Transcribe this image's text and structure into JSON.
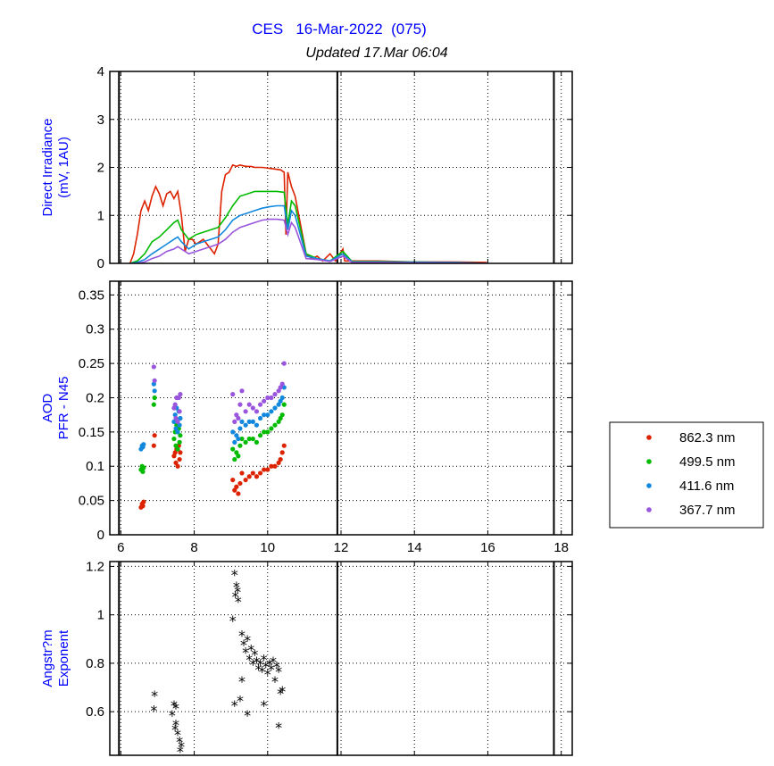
{
  "header": {
    "title": "CES   16-Mar-2022  (075)",
    "updated": "Updated 17.Mar 06:04"
  },
  "colors": {
    "862.3 nm": "#dd2200",
    "499.5 nm": "#00bb00",
    "411.6 nm": "#1188dd",
    "367.7 nm": "#9955dd",
    "angstrom": "#000000",
    "label": "#0000ff"
  },
  "chart_data": [
    {
      "type": "line",
      "ylabel": [
        "Direct Irradiance",
        "(mV, 1AU)"
      ],
      "xlim": [
        5.7,
        18.3
      ],
      "ylim": [
        0,
        4
      ],
      "yticks": [
        0,
        1,
        2,
        3,
        4
      ],
      "xticks": [
        6,
        8,
        10,
        12,
        14,
        16,
        18
      ],
      "x_tick_labels_shown": false,
      "grid": true,
      "vlines": [
        5.95,
        11.9,
        17.8
      ],
      "series": [
        {
          "name": "862.3 nm",
          "x": [
            6.25,
            6.35,
            6.45,
            6.55,
            6.65,
            6.75,
            6.85,
            6.95,
            7.05,
            7.15,
            7.25,
            7.35,
            7.45,
            7.55,
            7.65,
            7.75,
            7.85,
            7.95,
            8.05,
            8.15,
            8.25,
            8.35,
            8.45,
            8.55,
            8.65,
            8.75,
            8.85,
            8.95,
            9.05,
            9.15,
            9.25,
            9.35,
            9.45,
            9.55,
            9.65,
            9.75,
            9.85,
            9.95,
            10.05,
            10.15,
            10.25,
            10.35,
            10.45,
            10.5,
            10.55,
            10.65,
            10.75,
            11.05,
            11.2,
            11.35,
            11.5,
            11.7,
            11.85,
            12.05,
            12.1,
            12.3,
            13,
            14,
            15,
            15.95,
            16
          ],
          "y": [
            0,
            0.2,
            0.6,
            1.1,
            1.3,
            1.1,
            1.4,
            1.6,
            1.45,
            1.2,
            1.45,
            1.5,
            1.35,
            1.5,
            1.0,
            0.25,
            0.5,
            0.5,
            0.4,
            0.45,
            0.5,
            0.4,
            0.3,
            0.2,
            0.4,
            1.5,
            1.85,
            1.9,
            2.05,
            2.02,
            2.05,
            2.03,
            2.02,
            2.02,
            2.0,
            2.0,
            2.0,
            1.99,
            1.98,
            1.97,
            1.96,
            1.95,
            1.9,
            0.6,
            1.9,
            1.6,
            1.4,
            0.2,
            0.1,
            0.15,
            0.05,
            0.2,
            0.05,
            0.3,
            0.05,
            0.05,
            0.05,
            0.03,
            0.03,
            0.02,
            0
          ]
        },
        {
          "name": "499.5 nm",
          "x": [
            6.25,
            6.45,
            6.65,
            6.85,
            7.05,
            7.25,
            7.45,
            7.55,
            7.65,
            7.85,
            8.05,
            8.25,
            8.45,
            8.65,
            8.85,
            9.05,
            9.25,
            9.45,
            9.65,
            9.85,
            10.05,
            10.25,
            10.45,
            10.55,
            10.65,
            10.75,
            11.05,
            11.35,
            11.7,
            12.05,
            12.3,
            13,
            15,
            16
          ],
          "y": [
            0,
            0.05,
            0.2,
            0.45,
            0.55,
            0.7,
            0.85,
            0.9,
            0.7,
            0.5,
            0.6,
            0.65,
            0.7,
            0.75,
            0.95,
            1.2,
            1.4,
            1.45,
            1.5,
            1.5,
            1.5,
            1.5,
            1.48,
            0.8,
            1.3,
            1.2,
            0.2,
            0.1,
            0.05,
            0.25,
            0.04,
            0.04,
            0.02,
            0
          ]
        },
        {
          "name": "411.6 nm",
          "x": [
            6.25,
            6.45,
            6.65,
            6.85,
            7.05,
            7.25,
            7.45,
            7.55,
            7.65,
            7.85,
            8.05,
            8.25,
            8.45,
            8.65,
            8.85,
            9.05,
            9.25,
            9.45,
            9.65,
            9.85,
            10.05,
            10.25,
            10.45,
            10.55,
            10.65,
            10.75,
            11.05,
            11.35,
            11.7,
            12.05,
            12.3,
            13,
            15,
            16
          ],
          "y": [
            0,
            0.02,
            0.08,
            0.2,
            0.3,
            0.4,
            0.5,
            0.55,
            0.45,
            0.3,
            0.4,
            0.45,
            0.5,
            0.55,
            0.7,
            0.9,
            1.0,
            1.05,
            1.1,
            1.15,
            1.18,
            1.2,
            1.2,
            0.7,
            1.1,
            1.0,
            0.15,
            0.1,
            0.05,
            0.2,
            0.03,
            0.03,
            0.02,
            0
          ]
        },
        {
          "name": "367.7 nm",
          "x": [
            6.45,
            6.65,
            6.85,
            7.05,
            7.25,
            7.45,
            7.55,
            7.65,
            7.85,
            8.05,
            8.25,
            8.45,
            8.65,
            8.85,
            9.05,
            9.25,
            9.45,
            9.65,
            9.85,
            10.05,
            10.25,
            10.45,
            10.55,
            10.65,
            10.75,
            11.05,
            11.35,
            11.7,
            12.05,
            12.3,
            13,
            15,
            16
          ],
          "y": [
            0,
            0.03,
            0.1,
            0.15,
            0.25,
            0.3,
            0.35,
            0.3,
            0.2,
            0.25,
            0.3,
            0.35,
            0.4,
            0.5,
            0.65,
            0.75,
            0.8,
            0.85,
            0.9,
            0.92,
            0.92,
            0.9,
            0.6,
            0.85,
            0.75,
            0.1,
            0.08,
            0.04,
            0.15,
            0.02,
            0.02,
            0.01,
            0
          ]
        }
      ]
    },
    {
      "type": "scatter",
      "ylabel": [
        "AOD",
        "PFR - N45"
      ],
      "xlim": [
        5.7,
        18.3
      ],
      "ylim": [
        0,
        0.37
      ],
      "yticks": [
        0,
        0.05,
        0.1,
        0.15,
        0.2,
        0.25,
        0.3,
        0.35
      ],
      "ytick_labels": [
        "0",
        "0.05",
        "0.1",
        "0.15",
        "0.2",
        "0.25",
        "0.3",
        "0.35"
      ],
      "xticks": [
        6,
        8,
        10,
        12,
        14,
        16,
        18
      ],
      "xtick_labels": [
        "6",
        "8",
        "10",
        "12",
        "14",
        "16",
        "18"
      ],
      "grid": true,
      "legend": "right",
      "vlines": [
        5.95,
        11.9,
        17.8
      ],
      "series": [
        {
          "name": "862.3 nm",
          "x": [
            6.55,
            6.58,
            6.6,
            6.62,
            6.9,
            6.92,
            7.45,
            7.48,
            7.5,
            7.52,
            7.55,
            7.58,
            7.6,
            7.62,
            9.05,
            9.1,
            9.15,
            9.2,
            9.25,
            9.3,
            9.4,
            9.5,
            9.6,
            9.7,
            9.8,
            9.9,
            10.0,
            10.1,
            10.2,
            10.3,
            10.35,
            10.4,
            10.45
          ],
          "y": [
            0.04,
            0.045,
            0.042,
            0.048,
            0.13,
            0.145,
            0.115,
            0.12,
            0.105,
            0.125,
            0.1,
            0.13,
            0.11,
            0.12,
            0.08,
            0.065,
            0.07,
            0.06,
            0.075,
            0.09,
            0.08,
            0.085,
            0.09,
            0.085,
            0.09,
            0.095,
            0.095,
            0.1,
            0.1,
            0.105,
            0.11,
            0.12,
            0.13
          ]
        },
        {
          "name": "499.5 nm",
          "x": [
            6.55,
            6.58,
            6.6,
            6.62,
            6.9,
            6.92,
            7.45,
            7.48,
            7.5,
            7.52,
            7.55,
            7.58,
            7.6,
            7.62,
            9.05,
            9.1,
            9.15,
            9.2,
            9.25,
            9.3,
            9.4,
            9.5,
            9.6,
            9.7,
            9.8,
            9.9,
            10.0,
            10.1,
            10.2,
            10.3,
            10.35,
            10.4,
            10.45
          ],
          "y": [
            0.095,
            0.1,
            0.092,
            0.098,
            0.19,
            0.2,
            0.14,
            0.15,
            0.13,
            0.16,
            0.125,
            0.155,
            0.135,
            0.145,
            0.125,
            0.11,
            0.12,
            0.115,
            0.13,
            0.14,
            0.135,
            0.14,
            0.14,
            0.135,
            0.145,
            0.15,
            0.15,
            0.155,
            0.16,
            0.165,
            0.17,
            0.175,
            0.19
          ]
        },
        {
          "name": "411.6 nm",
          "x": [
            6.55,
            6.58,
            6.6,
            6.62,
            6.9,
            6.92,
            7.45,
            7.48,
            7.5,
            7.52,
            7.55,
            7.58,
            7.6,
            7.62,
            9.05,
            9.1,
            9.15,
            9.2,
            9.25,
            9.3,
            9.4,
            9.5,
            9.6,
            9.7,
            9.8,
            9.9,
            10.0,
            10.1,
            10.2,
            10.3,
            10.35,
            10.4,
            10.45
          ],
          "y": [
            0.125,
            0.13,
            0.128,
            0.132,
            0.22,
            0.21,
            0.165,
            0.175,
            0.155,
            0.185,
            0.15,
            0.18,
            0.16,
            0.17,
            0.15,
            0.135,
            0.145,
            0.14,
            0.155,
            0.165,
            0.16,
            0.165,
            0.165,
            0.16,
            0.17,
            0.175,
            0.175,
            0.18,
            0.185,
            0.19,
            0.195,
            0.2,
            0.215
          ]
        },
        {
          "name": "367.7 nm",
          "x": [
            6.9,
            6.92,
            7.45,
            7.48,
            7.5,
            7.52,
            7.55,
            7.58,
            7.6,
            7.62,
            9.05,
            9.1,
            9.15,
            9.2,
            9.25,
            9.3,
            9.4,
            9.5,
            9.6,
            9.7,
            9.8,
            9.9,
            10.0,
            10.1,
            10.2,
            10.3,
            10.35,
            10.4,
            10.45
          ],
          "y": [
            0.245,
            0.225,
            0.185,
            0.19,
            0.17,
            0.2,
            0.165,
            0.2,
            0.18,
            0.205,
            0.205,
            0.165,
            0.175,
            0.17,
            0.19,
            0.21,
            0.18,
            0.19,
            0.185,
            0.18,
            0.19,
            0.195,
            0.2,
            0.2,
            0.205,
            0.21,
            0.215,
            0.22,
            0.25
          ]
        }
      ]
    },
    {
      "type": "scatter",
      "ylabel": [
        "Angstr?m",
        "Exponent"
      ],
      "xlim": [
        5.7,
        18.3
      ],
      "ylim": [
        0.42,
        1.22
      ],
      "yticks": [
        0.6,
        0.8,
        1.0,
        1.2
      ],
      "ytick_labels": [
        "0.6",
        "0.8",
        "1",
        "1.2"
      ],
      "xticks": [
        6,
        8,
        10,
        12,
        14,
        16,
        18
      ],
      "grid": true,
      "vlines": [
        5.95,
        11.9,
        17.8
      ],
      "series": [
        {
          "marker": "*",
          "x": [
            6.9,
            6.92,
            7.4,
            7.45,
            7.5,
            7.48,
            7.55,
            7.5,
            7.6,
            7.65,
            7.62,
            9.05,
            9.1,
            9.15,
            9.2,
            9.12,
            9.18,
            9.1,
            9.3,
            9.35,
            9.4,
            9.45,
            9.5,
            9.55,
            9.6,
            9.65,
            9.7,
            9.75,
            9.8,
            9.85,
            9.9,
            9.95,
            10.0,
            10.05,
            10.1,
            10.15,
            10.2,
            10.25,
            10.3,
            10.35,
            10.4,
            9.25,
            9.3,
            9.45,
            9.9,
            10.3
          ],
          "y": [
            0.61,
            0.67,
            0.59,
            0.63,
            0.62,
            0.53,
            0.51,
            0.55,
            0.48,
            0.46,
            0.44,
            0.98,
            1.17,
            1.12,
            1.06,
            1.08,
            1.1,
            0.63,
            0.92,
            0.88,
            0.85,
            0.9,
            0.82,
            0.86,
            0.8,
            0.84,
            0.81,
            0.78,
            0.8,
            0.77,
            0.82,
            0.79,
            0.76,
            0.8,
            0.78,
            0.81,
            0.73,
            0.79,
            0.77,
            0.68,
            0.69,
            0.65,
            0.73,
            0.59,
            0.63,
            0.54
          ]
        }
      ]
    }
  ]
}
